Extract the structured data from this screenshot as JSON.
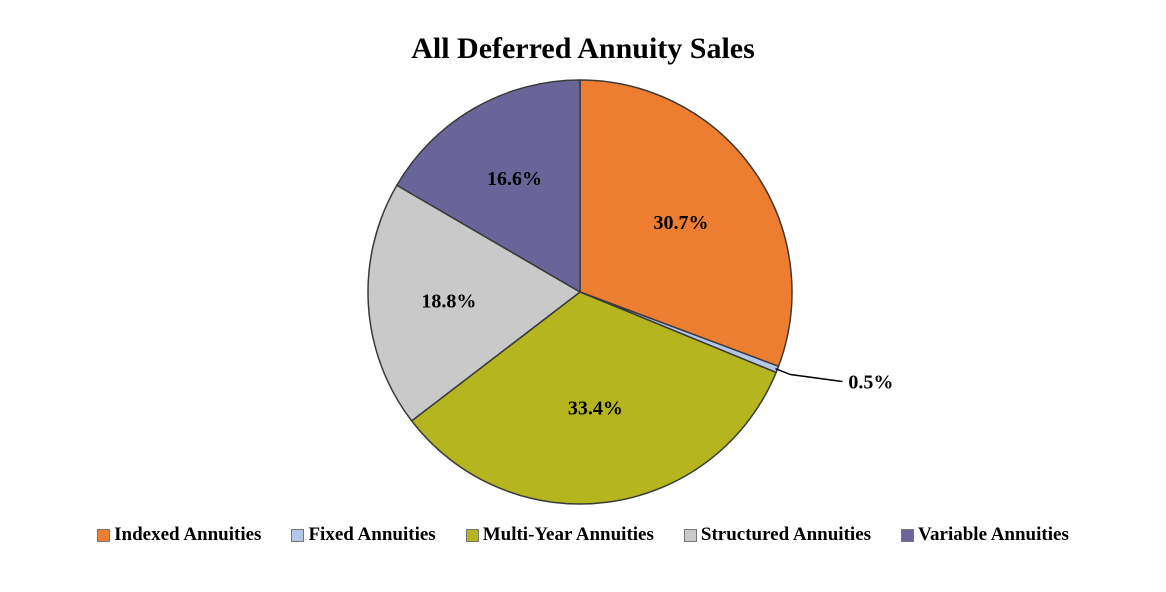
{
  "chart_data": {
    "type": "pie",
    "title": "All Deferred Annuity Sales",
    "series": [
      {
        "name": "Indexed Annuities",
        "value": 30.7,
        "label": "30.7%",
        "color": "#ED7D31"
      },
      {
        "name": "Fixed Annuities",
        "value": 0.5,
        "label": "0.5%",
        "color": "#B4C7E7"
      },
      {
        "name": "Multi-Year Annuities",
        "value": 33.4,
        "label": "33.4%",
        "color": "#B5B61F"
      },
      {
        "name": "Structured Annuities",
        "value": 18.8,
        "label": "18.8%",
        "color": "#C9C9C9"
      },
      {
        "name": "Variable Annuities",
        "value": 16.6,
        "label": "16.6%",
        "color": "#6A6599"
      }
    ],
    "legend_position": "bottom",
    "start_angle": "12 o'clock",
    "direction": "clockwise"
  }
}
